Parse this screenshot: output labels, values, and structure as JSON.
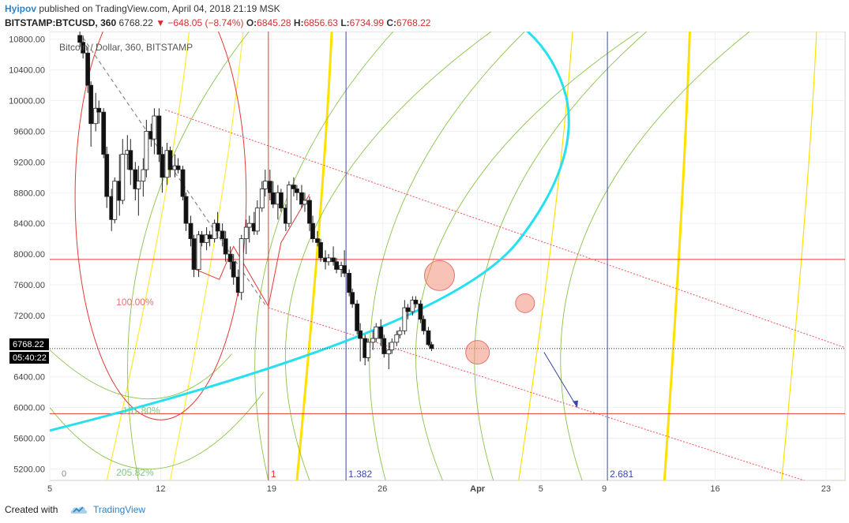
{
  "header": {
    "author": "Hyipov",
    "published_text": "published on TradingView.com, April 04, 2018 21:19 MSK",
    "symbol": "BITSTAMP:BTCUSD, 360",
    "last": "6768.22",
    "change": "▼ −648.05 (−8.74%)",
    "o_label": "O:",
    "o_value": "6845.28",
    "h_label": "H:",
    "h_value": "6856.63",
    "l_label": "L:",
    "l_value": "6734.99",
    "c_label": "C:",
    "c_value": "6768.22"
  },
  "footer": {
    "created_with": "Created with",
    "brand": "TradingView"
  },
  "chart_data": {
    "type": "candlestick",
    "legend": "Bitcoin / Dollar, 360, BITSTAMP",
    "y_ticks": [
      10800,
      10400,
      10000,
      9600,
      9200,
      8800,
      8400,
      8000,
      7600,
      7200,
      6800,
      6400,
      6000,
      5600,
      5200
    ],
    "y_tick_labels": [
      "10800.00",
      "10400.00",
      "10000.00",
      "9600.00",
      "9200.00",
      "8800.00",
      "8400.00",
      "8000.00",
      "7600.00",
      "7200.00",
      "6800.00",
      "6400.00",
      "6000.00",
      "5600.00",
      "5200.00"
    ],
    "ylim": [
      5050,
      10900
    ],
    "x_ticks": [
      {
        "day": 5,
        "label": "5"
      },
      {
        "day": 12,
        "label": "12"
      },
      {
        "day": 19,
        "label": "19"
      },
      {
        "day": 26,
        "label": "26"
      },
      {
        "day": 32,
        "label": "Apr"
      },
      {
        "day": 36,
        "label": "5"
      },
      {
        "day": 40,
        "label": "9"
      },
      {
        "day": 47,
        "label": "16"
      },
      {
        "day": 54,
        "label": "23"
      }
    ],
    "xlim": [
      5.0,
      55.2
    ],
    "last_price_label": "6768.22",
    "countdown_label": "05:40:22",
    "last_price": 6768.22,
    "horizontal_levels": [
      7930,
      5920
    ],
    "vertical_lines": [
      {
        "day": 18.8,
        "label": "1",
        "color": "#e53935"
      },
      {
        "day": 23.7,
        "label": "1.382",
        "color": "#3949ab"
      },
      {
        "day": 40.2,
        "label": "2.681",
        "color": "#3949ab"
      }
    ],
    "fib_labels": [
      {
        "text": "100.00%",
        "day": 9.2,
        "price": 7330,
        "color": "#e57373"
      },
      {
        "text": "161.80%",
        "day": 9.6,
        "price": 5920,
        "color": "#81c784"
      },
      {
        "text": "205.82%",
        "day": 9.2,
        "price": 5110,
        "color": "#81c784"
      }
    ],
    "zero_label": "0",
    "candles": [
      {
        "d": 6.9,
        "o": 10850,
        "h": 10900,
        "l": 10700,
        "c": 10760
      },
      {
        "d": 7.1,
        "o": 10760,
        "h": 10850,
        "l": 10550,
        "c": 10620
      },
      {
        "d": 7.4,
        "o": 10620,
        "h": 10700,
        "l": 10100,
        "c": 10200
      },
      {
        "d": 7.6,
        "o": 10200,
        "h": 10250,
        "l": 9400,
        "c": 9700
      },
      {
        "d": 7.9,
        "o": 9700,
        "h": 10100,
        "l": 9600,
        "c": 9900
      },
      {
        "d": 8.1,
        "o": 9900,
        "h": 10000,
        "l": 9700,
        "c": 9850
      },
      {
        "d": 8.4,
        "o": 9850,
        "h": 9900,
        "l": 9250,
        "c": 9300
      },
      {
        "d": 8.6,
        "o": 9300,
        "h": 9400,
        "l": 8600,
        "c": 8750
      },
      {
        "d": 8.9,
        "o": 8750,
        "h": 8850,
        "l": 8300,
        "c": 8450
      },
      {
        "d": 9.1,
        "o": 8450,
        "h": 9000,
        "l": 8400,
        "c": 8950
      },
      {
        "d": 9.4,
        "o": 8950,
        "h": 9300,
        "l": 8500,
        "c": 8700
      },
      {
        "d": 9.6,
        "o": 8700,
        "h": 9500,
        "l": 8650,
        "c": 9300
      },
      {
        "d": 9.9,
        "o": 9300,
        "h": 9550,
        "l": 9100,
        "c": 9350
      },
      {
        "d": 10.1,
        "o": 9350,
        "h": 9500,
        "l": 8900,
        "c": 9100
      },
      {
        "d": 10.4,
        "o": 9100,
        "h": 9200,
        "l": 8700,
        "c": 8850
      },
      {
        "d": 10.6,
        "o": 8850,
        "h": 9150,
        "l": 8500,
        "c": 8950
      },
      {
        "d": 10.9,
        "o": 8950,
        "h": 9250,
        "l": 8750,
        "c": 9100
      },
      {
        "d": 11.1,
        "o": 9100,
        "h": 9750,
        "l": 9000,
        "c": 9600
      },
      {
        "d": 11.4,
        "o": 9600,
        "h": 9700,
        "l": 9400,
        "c": 9500
      },
      {
        "d": 11.6,
        "o": 9500,
        "h": 9900,
        "l": 9300,
        "c": 9800
      },
      {
        "d": 11.9,
        "o": 9800,
        "h": 9900,
        "l": 9200,
        "c": 9300
      },
      {
        "d": 12.1,
        "o": 9300,
        "h": 9400,
        "l": 8800,
        "c": 9000
      },
      {
        "d": 12.4,
        "o": 9000,
        "h": 9450,
        "l": 8900,
        "c": 9350
      },
      {
        "d": 12.6,
        "o": 9350,
        "h": 9400,
        "l": 9000,
        "c": 9100
      },
      {
        "d": 12.9,
        "o": 9100,
        "h": 9300,
        "l": 9000,
        "c": 9150
      },
      {
        "d": 13.1,
        "o": 9150,
        "h": 9250,
        "l": 9050,
        "c": 9100
      },
      {
        "d": 13.4,
        "o": 9100,
        "h": 9150,
        "l": 8700,
        "c": 8750
      },
      {
        "d": 13.6,
        "o": 8750,
        "h": 8800,
        "l": 8300,
        "c": 8400
      },
      {
        "d": 13.9,
        "o": 8400,
        "h": 8500,
        "l": 8100,
        "c": 8200
      },
      {
        "d": 14.1,
        "o": 8200,
        "h": 8250,
        "l": 7700,
        "c": 7800
      },
      {
        "d": 14.4,
        "o": 7800,
        "h": 8300,
        "l": 7700,
        "c": 8250
      },
      {
        "d": 14.6,
        "o": 8250,
        "h": 8300,
        "l": 8100,
        "c": 8150
      },
      {
        "d": 14.9,
        "o": 8150,
        "h": 8350,
        "l": 8050,
        "c": 8250
      },
      {
        "d": 15.1,
        "o": 8250,
        "h": 8300,
        "l": 8100,
        "c": 8200
      },
      {
        "d": 15.4,
        "o": 8200,
        "h": 8450,
        "l": 8150,
        "c": 8400
      },
      {
        "d": 15.6,
        "o": 8400,
        "h": 8550,
        "l": 8200,
        "c": 8300
      },
      {
        "d": 15.9,
        "o": 8300,
        "h": 8400,
        "l": 8100,
        "c": 8200
      },
      {
        "d": 16.1,
        "o": 8200,
        "h": 8300,
        "l": 7900,
        "c": 8000
      },
      {
        "d": 16.4,
        "o": 8000,
        "h": 8100,
        "l": 7800,
        "c": 7900
      },
      {
        "d": 16.6,
        "o": 7900,
        "h": 8000,
        "l": 7600,
        "c": 7700
      },
      {
        "d": 16.9,
        "o": 7700,
        "h": 7800,
        "l": 7450,
        "c": 7500
      },
      {
        "d": 17.1,
        "o": 7500,
        "h": 8250,
        "l": 7400,
        "c": 8200
      },
      {
        "d": 17.4,
        "o": 8200,
        "h": 8450,
        "l": 8000,
        "c": 8350
      },
      {
        "d": 17.6,
        "o": 8350,
        "h": 8500,
        "l": 8150,
        "c": 8400
      },
      {
        "d": 17.9,
        "o": 8400,
        "h": 8550,
        "l": 8250,
        "c": 8300
      },
      {
        "d": 18.1,
        "o": 8300,
        "h": 8700,
        "l": 8250,
        "c": 8600
      },
      {
        "d": 18.4,
        "o": 8600,
        "h": 8950,
        "l": 8550,
        "c": 8850
      },
      {
        "d": 18.6,
        "o": 8850,
        "h": 9100,
        "l": 8750,
        "c": 8950
      },
      {
        "d": 18.9,
        "o": 8950,
        "h": 9100,
        "l": 8700,
        "c": 8800
      },
      {
        "d": 19.1,
        "o": 8800,
        "h": 8950,
        "l": 8600,
        "c": 8650
      },
      {
        "d": 19.4,
        "o": 8650,
        "h": 8900,
        "l": 8450,
        "c": 8800
      },
      {
        "d": 19.6,
        "o": 8800,
        "h": 8850,
        "l": 8550,
        "c": 8600
      },
      {
        "d": 19.9,
        "o": 8600,
        "h": 8650,
        "l": 8300,
        "c": 8400
      },
      {
        "d": 20.1,
        "o": 8400,
        "h": 8950,
        "l": 8350,
        "c": 8900
      },
      {
        "d": 20.4,
        "o": 8900,
        "h": 9000,
        "l": 8750,
        "c": 8850
      },
      {
        "d": 20.6,
        "o": 8850,
        "h": 8900,
        "l": 8700,
        "c": 8800
      },
      {
        "d": 20.9,
        "o": 8800,
        "h": 8900,
        "l": 8600,
        "c": 8650
      },
      {
        "d": 21.1,
        "o": 8650,
        "h": 8800,
        "l": 8550,
        "c": 8700
      },
      {
        "d": 21.4,
        "o": 8700,
        "h": 8750,
        "l": 8300,
        "c": 8400
      },
      {
        "d": 21.6,
        "o": 8400,
        "h": 8500,
        "l": 8150,
        "c": 8200
      },
      {
        "d": 21.9,
        "o": 8200,
        "h": 8300,
        "l": 8100,
        "c": 8150
      },
      {
        "d": 22.1,
        "o": 8150,
        "h": 8200,
        "l": 7900,
        "c": 7950
      },
      {
        "d": 22.4,
        "o": 7950,
        "h": 8050,
        "l": 7800,
        "c": 7900
      },
      {
        "d": 22.6,
        "o": 7900,
        "h": 8000,
        "l": 7850,
        "c": 7950
      },
      {
        "d": 22.9,
        "o": 7950,
        "h": 8100,
        "l": 7850,
        "c": 7900
      },
      {
        "d": 23.1,
        "o": 7900,
        "h": 7950,
        "l": 7750,
        "c": 7800
      },
      {
        "d": 23.4,
        "o": 7800,
        "h": 7900,
        "l": 7700,
        "c": 7850
      },
      {
        "d": 23.6,
        "o": 7850,
        "h": 8050,
        "l": 7700,
        "c": 7750
      },
      {
        "d": 23.9,
        "o": 7750,
        "h": 7800,
        "l": 7450,
        "c": 7500
      },
      {
        "d": 24.1,
        "o": 7500,
        "h": 7550,
        "l": 7300,
        "c": 7350
      },
      {
        "d": 24.4,
        "o": 7350,
        "h": 7400,
        "l": 6950,
        "c": 7000
      },
      {
        "d": 24.6,
        "o": 7000,
        "h": 7100,
        "l": 6600,
        "c": 6900
      },
      {
        "d": 24.9,
        "o": 6900,
        "h": 6950,
        "l": 6550,
        "c": 6650
      },
      {
        "d": 25.1,
        "o": 6650,
        "h": 6900,
        "l": 6600,
        "c": 6850
      },
      {
        "d": 25.4,
        "o": 6850,
        "h": 7000,
        "l": 6750,
        "c": 6900
      },
      {
        "d": 25.6,
        "o": 6900,
        "h": 7100,
        "l": 6850,
        "c": 7050
      },
      {
        "d": 25.9,
        "o": 7050,
        "h": 7150,
        "l": 6800,
        "c": 6900
      },
      {
        "d": 26.1,
        "o": 6900,
        "h": 6950,
        "l": 6650,
        "c": 6700
      },
      {
        "d": 26.4,
        "o": 6700,
        "h": 6850,
        "l": 6500,
        "c": 6750
      },
      {
        "d": 26.6,
        "o": 6750,
        "h": 6900,
        "l": 6700,
        "c": 6850
      },
      {
        "d": 26.9,
        "o": 6850,
        "h": 7000,
        "l": 6800,
        "c": 6950
      },
      {
        "d": 27.1,
        "o": 6950,
        "h": 7050,
        "l": 6900,
        "c": 7000
      },
      {
        "d": 27.4,
        "o": 7000,
        "h": 7400,
        "l": 6950,
        "c": 7300
      },
      {
        "d": 27.6,
        "o": 7300,
        "h": 7350,
        "l": 7150,
        "c": 7250
      },
      {
        "d": 27.9,
        "o": 7250,
        "h": 7450,
        "l": 7200,
        "c": 7400
      },
      {
        "d": 28.1,
        "o": 7400,
        "h": 7450,
        "l": 7300,
        "c": 7350
      },
      {
        "d": 28.4,
        "o": 7350,
        "h": 7400,
        "l": 7100,
        "c": 7150
      },
      {
        "d": 28.6,
        "o": 7150,
        "h": 7200,
        "l": 6950,
        "c": 7000
      },
      {
        "d": 28.9,
        "o": 7000,
        "h": 7050,
        "l": 6800,
        "c": 6820
      },
      {
        "d": 29.1,
        "o": 6820,
        "h": 6856,
        "l": 6735,
        "c": 6768
      }
    ]
  }
}
